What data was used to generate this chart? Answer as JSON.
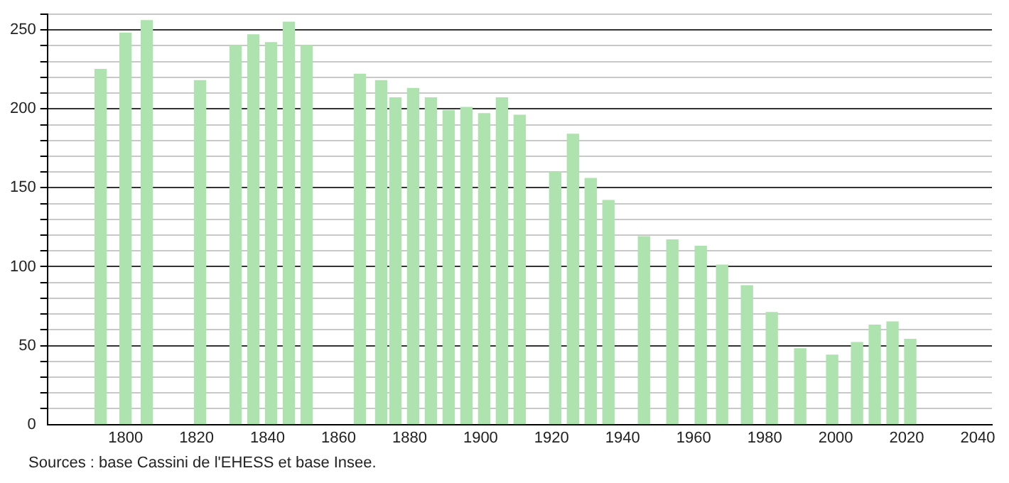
{
  "chart_data": {
    "type": "bar",
    "x": [
      1793,
      1800,
      1806,
      1821,
      1831,
      1836,
      1841,
      1846,
      1851,
      1866,
      1872,
      1876,
      1881,
      1886,
      1891,
      1896,
      1901,
      1906,
      1911,
      1921,
      1926,
      1931,
      1936,
      1946,
      1954,
      1962,
      1968,
      1975,
      1982,
      1990,
      1999,
      2006,
      2011,
      2016,
      2021
    ],
    "values": [
      225,
      248,
      256,
      218,
      240,
      247,
      242,
      255,
      240,
      222,
      218,
      207,
      213,
      207,
      199,
      201,
      197,
      207,
      196,
      160,
      184,
      156,
      142,
      119,
      117,
      113,
      101,
      88,
      71,
      48,
      44,
      52,
      63,
      65,
      54
    ],
    "color": "#aee2ae",
    "xlim": [
      1778,
      2044
    ],
    "xticks": [
      1800,
      1820,
      1840,
      1860,
      1880,
      1900,
      1920,
      1940,
      1960,
      1980,
      2000,
      2020,
      2040
    ],
    "ylim": [
      0,
      260
    ],
    "yticks": [
      0,
      {
        "value": 10,
        "label": null
      },
      {
        "value": 20,
        "label": null
      },
      {
        "value": 30,
        "label": null
      },
      {
        "value": 40,
        "label": null
      },
      50,
      {
        "value": 60,
        "label": null
      },
      {
        "value": 70,
        "label": null
      },
      {
        "value": 80,
        "label": null
      },
      {
        "value": 90,
        "label": null
      },
      100,
      {
        "value": 110,
        "label": null
      },
      {
        "value": 120,
        "label": null
      },
      {
        "value": 130,
        "label": null
      },
      {
        "value": 140,
        "label": null
      },
      150,
      {
        "value": 160,
        "label": null
      },
      {
        "value": 170,
        "label": null
      },
      {
        "value": 180,
        "label": null
      },
      {
        "value": 190,
        "label": null
      },
      200,
      {
        "value": 210,
        "label": null
      },
      {
        "value": 220,
        "label": null
      },
      {
        "value": 230,
        "label": null
      },
      {
        "value": 240,
        "label": null
      },
      250,
      {
        "value": 260,
        "label": null
      }
    ],
    "grid": "y",
    "annotations": [
      "Sources : base Cassini de l'EHESS et base Insee."
    ]
  }
}
